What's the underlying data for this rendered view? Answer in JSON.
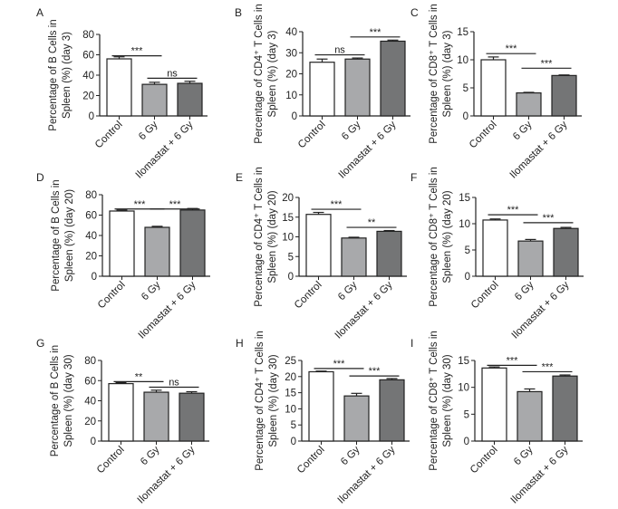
{
  "chart_data": [
    {
      "panel": "A",
      "type": "bar",
      "ylabel_lines": [
        "Percentage of B Cells in",
        "Spleen (%) (day 3)"
      ],
      "categories": [
        "Control",
        "6 Gy",
        "Ilomastat + 6 Gy"
      ],
      "values": [
        56,
        31,
        32
      ],
      "errors": [
        2,
        2,
        2
      ],
      "ylim": [
        0,
        80
      ],
      "yticks": [
        "0",
        "20",
        "40",
        "60",
        "80"
      ],
      "bar_fill": [
        "#ffffff",
        "#a8a9ab",
        "#747576"
      ],
      "sig": [
        {
          "from": 0,
          "to": 1,
          "label": "***",
          "level": 59
        },
        {
          "from": 1,
          "to": 2,
          "label": "ns",
          "level": 37
        }
      ]
    },
    {
      "panel": "B",
      "type": "bar",
      "ylabel_lines": [
        "Percentage of CD4⁺ T Cells in",
        "Spleen (%) (day 3)"
      ],
      "categories": [
        "Control",
        "6 Gy",
        "Ilomastat + 6 Gy"
      ],
      "values": [
        25.5,
        27,
        35.5
      ],
      "errors": [
        1.5,
        0.5,
        0.5
      ],
      "ylim": [
        0,
        40
      ],
      "yticks": [
        "0",
        "10",
        "20",
        "30",
        "40"
      ],
      "bar_fill": [
        "#ffffff",
        "#a8a9ab",
        "#747576"
      ],
      "sig": [
        {
          "from": 0,
          "to": 1,
          "label": "ns",
          "level": 29
        },
        {
          "from": 1,
          "to": 2,
          "label": "***",
          "level": 37.5
        }
      ]
    },
    {
      "panel": "C",
      "type": "bar",
      "ylabel_lines": [
        "Percentage of CD8⁺ T Cells in",
        "Spleen (%) (day 3)"
      ],
      "categories": [
        "Control",
        "6 Gy",
        "Ilomastat + 6 Gy"
      ],
      "values": [
        10,
        4.1,
        7.2
      ],
      "errors": [
        0.5,
        0.1,
        0.1
      ],
      "ylim": [
        0,
        15
      ],
      "yticks": [
        "0",
        "5",
        "10",
        "15"
      ],
      "bar_fill": [
        "#ffffff",
        "#a8a9ab",
        "#747576"
      ],
      "sig": [
        {
          "from": 0,
          "to": 1,
          "label": "***",
          "level": 11.1
        },
        {
          "from": 1,
          "to": 2,
          "label": "***",
          "level": 8.5
        }
      ]
    },
    {
      "panel": "D",
      "type": "bar",
      "ylabel_lines": [
        "Percentage of B Cells in",
        "Spleen (%) (day 20)"
      ],
      "categories": [
        "Control",
        "6 Gy",
        "Ilomastat + 6 Gy"
      ],
      "values": [
        64,
        48,
        65
      ],
      "errors": [
        1,
        1,
        1.5
      ],
      "ylim": [
        0,
        80
      ],
      "yticks": [
        "0",
        "20",
        "40",
        "60",
        "80"
      ],
      "bar_fill": [
        "#ffffff",
        "#a8a9ab",
        "#747576"
      ],
      "sig": [
        {
          "from": 0,
          "to": 1,
          "label": "***",
          "level": 66
        },
        {
          "from": 1,
          "to": 2,
          "label": "***",
          "level": 66
        }
      ]
    },
    {
      "panel": "E",
      "type": "bar",
      "ylabel_lines": [
        "Percentage of CD4⁺ T Cells in",
        "Spleen (%) (day 20)"
      ],
      "categories": [
        "Control",
        "6 Gy",
        "Ilomastat + 6 Gy"
      ],
      "values": [
        15.7,
        9.7,
        11.4
      ],
      "errors": [
        0.5,
        0.2,
        0.2
      ],
      "ylim": [
        0,
        20
      ],
      "yticks": [
        "0",
        "5",
        "10",
        "15",
        "20"
      ],
      "bar_fill": [
        "#ffffff",
        "#a8a9ab",
        "#747576"
      ],
      "sig": [
        {
          "from": 0,
          "to": 1,
          "label": "***",
          "level": 17
        },
        {
          "from": 1,
          "to": 2,
          "label": "**",
          "level": 12.4
        }
      ]
    },
    {
      "panel": "F",
      "type": "bar",
      "ylabel_lines": [
        "Percentage of CD8⁺ T Cells in",
        "Spleen (%) (day 20)"
      ],
      "categories": [
        "Control",
        "6 Gy",
        "Ilomastat + 6 Gy"
      ],
      "values": [
        10.7,
        6.7,
        9.1
      ],
      "errors": [
        0.2,
        0.3,
        0.2
      ],
      "ylim": [
        0,
        15
      ],
      "yticks": [
        "0",
        "5",
        "10",
        "15"
      ],
      "bar_fill": [
        "#ffffff",
        "#a8a9ab",
        "#747576"
      ],
      "sig": [
        {
          "from": 0,
          "to": 1,
          "label": "***",
          "level": 11.7
        },
        {
          "from": 1,
          "to": 2,
          "label": "***",
          "level": 10.2
        }
      ]
    },
    {
      "panel": "G",
      "type": "bar",
      "ylabel_lines": [
        "Percentage of B Cells in",
        "Spleen (%) (day 30)"
      ],
      "categories": [
        "Control",
        "6 Gy",
        "Ilomastat + 6 Gy"
      ],
      "values": [
        57,
        48.5,
        47.5
      ],
      "errors": [
        1,
        2,
        1.5
      ],
      "ylim": [
        0,
        80
      ],
      "yticks": [
        "0",
        "20",
        "40",
        "60",
        "80"
      ],
      "bar_fill": [
        "#ffffff",
        "#a8a9ab",
        "#747576"
      ],
      "sig": [
        {
          "from": 0,
          "to": 1,
          "label": "**",
          "level": 59
        },
        {
          "from": 1,
          "to": 2,
          "label": "ns",
          "level": 53.5
        }
      ]
    },
    {
      "panel": "H",
      "type": "bar",
      "ylabel_lines": [
        "Percentage of CD4⁺ T Cells in",
        "Spleen (%) (day 30)"
      ],
      "categories": [
        "Control",
        "6 Gy",
        "Ilomastat + 6 Gy"
      ],
      "values": [
        21.5,
        14,
        19
      ],
      "errors": [
        0.2,
        0.8,
        0.4
      ],
      "ylim": [
        0,
        25
      ],
      "yticks": [
        "0",
        "5",
        "10",
        "15",
        "20",
        "25"
      ],
      "bar_fill": [
        "#ffffff",
        "#a8a9ab",
        "#747576"
      ],
      "sig": [
        {
          "from": 0,
          "to": 1,
          "label": "***",
          "level": 22.5
        },
        {
          "from": 1,
          "to": 2,
          "label": "***",
          "level": 20.2
        }
      ]
    },
    {
      "panel": "I",
      "type": "bar",
      "ylabel_lines": [
        "Percentage of CD8⁺ T Cells in",
        "Spleen (%) (day 30)"
      ],
      "categories": [
        "Control",
        "6 Gy",
        "Ilomastat + 6 Gy"
      ],
      "values": [
        13.6,
        9.2,
        12.1
      ],
      "errors": [
        0.2,
        0.5,
        0.2
      ],
      "ylim": [
        0,
        15
      ],
      "yticks": [
        "0",
        "5",
        "10",
        "15"
      ],
      "bar_fill": [
        "#ffffff",
        "#a8a9ab",
        "#747576"
      ],
      "sig": [
        {
          "from": 0,
          "to": 1,
          "label": "***",
          "level": 14.1
        },
        {
          "from": 1,
          "to": 2,
          "label": "***",
          "level": 12.9
        }
      ]
    }
  ]
}
